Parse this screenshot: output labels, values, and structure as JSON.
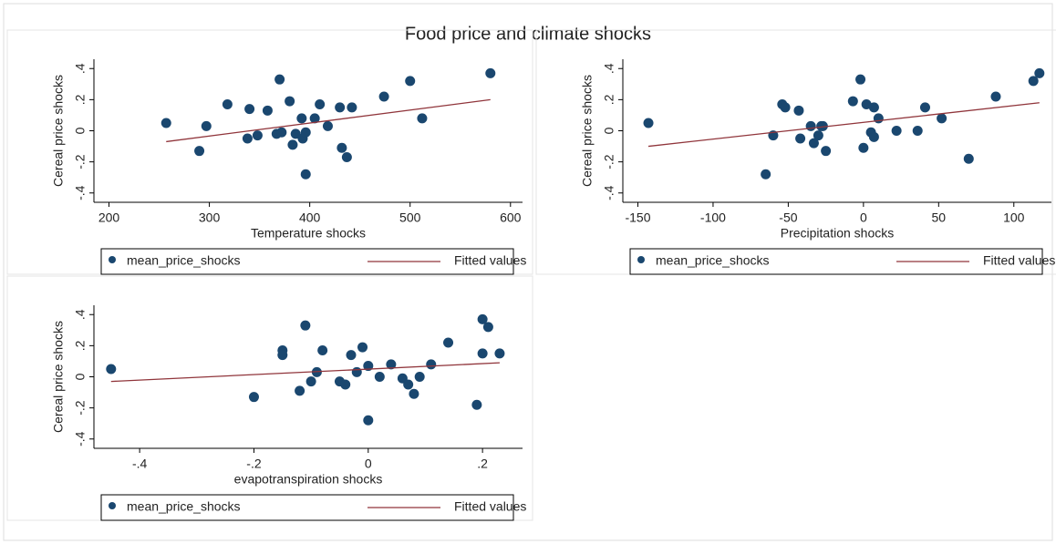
{
  "title": "Food price and climate shocks",
  "chart_data": [
    {
      "type": "scatter",
      "ylabel": "Cereal price shocks",
      "xlabel": "Temperature shocks",
      "xlim": [
        185,
        612
      ],
      "xticks": [
        200,
        300,
        400,
        500,
        600
      ],
      "ylim": [
        -0.46,
        0.46
      ],
      "yticks": [
        {
          "value": -0.4,
          "label": "-.4"
        },
        {
          "value": -0.2,
          "label": "-.2"
        },
        0,
        {
          "value": 0.2,
          "label": ".2"
        },
        {
          "value": 0.4,
          "label": ".4"
        }
      ],
      "series": [
        {
          "name": "mean_price_shocks",
          "type": "scatter",
          "color": "#1a476f",
          "x": [
            257,
            290,
            297,
            318,
            338,
            340,
            348,
            358,
            367,
            370,
            372,
            380,
            383,
            386,
            392,
            393,
            396,
            396,
            405,
            410,
            418,
            430,
            432,
            437,
            442,
            474,
            500,
            512,
            580
          ],
          "values": [
            0.05,
            -0.13,
            0.03,
            0.17,
            -0.05,
            0.14,
            -0.03,
            0.13,
            -0.02,
            0.33,
            -0.01,
            0.19,
            -0.09,
            -0.02,
            0.08,
            -0.05,
            -0.28,
            -0.01,
            0.08,
            0.17,
            0.03,
            0.15,
            -0.11,
            -0.17,
            0.15,
            0.22,
            0.32,
            0.08,
            0.37
          ]
        },
        {
          "name": "Fitted values",
          "type": "line",
          "color": "#90353b",
          "x": [
            257,
            580
          ],
          "values": [
            -0.07,
            0.2
          ]
        }
      ]
    },
    {
      "type": "scatter",
      "ylabel": "Cereal price shocks",
      "xlabel": "Precipitation shocks",
      "xlim": [
        -160,
        125
      ],
      "xticks": [
        -150,
        -100,
        -50,
        0,
        50,
        100
      ],
      "ylim": [
        -0.46,
        0.46
      ],
      "yticks": [
        {
          "value": -0.4,
          "label": "-.4"
        },
        {
          "value": -0.2,
          "label": "-.2"
        },
        0,
        {
          "value": 0.2,
          "label": ".2"
        },
        {
          "value": 0.4,
          "label": ".4"
        }
      ],
      "series": [
        {
          "name": "mean_price_shocks",
          "type": "scatter",
          "color": "#1a476f",
          "x": [
            -143,
            -65,
            -60,
            -54,
            -52,
            -43,
            -42,
            -35,
            -33,
            -30,
            -28,
            -25,
            -27,
            -7,
            -2,
            0,
            2,
            5,
            7,
            7,
            10,
            22,
            36,
            41,
            52,
            70,
            88,
            113,
            117
          ],
          "values": [
            0.05,
            -0.28,
            -0.03,
            0.17,
            0.15,
            0.13,
            -0.05,
            0.03,
            -0.08,
            -0.03,
            0.03,
            -0.13,
            0.03,
            0.19,
            0.33,
            -0.11,
            0.17,
            -0.01,
            0.15,
            -0.04,
            0.08,
            0,
            0,
            0.15,
            0.08,
            -0.18,
            0.22,
            0.32,
            0.37
          ]
        },
        {
          "name": "Fitted values",
          "type": "line",
          "color": "#90353b",
          "x": [
            -143,
            117
          ],
          "values": [
            -0.1,
            0.18
          ]
        }
      ]
    },
    {
      "type": "scatter",
      "ylabel": "Cereal price shocks",
      "xlabel": "evapotranspiration shocks",
      "xlim": [
        -0.48,
        0.27
      ],
      "xticks": [
        {
          "value": -0.4,
          "label": "-.4"
        },
        {
          "value": -0.2,
          "label": "-.2"
        },
        0,
        {
          "value": 0.2,
          "label": ".2"
        }
      ],
      "ylim": [
        -0.46,
        0.46
      ],
      "yticks": [
        {
          "value": -0.4,
          "label": "-.4"
        },
        {
          "value": -0.2,
          "label": "-.2"
        },
        0,
        {
          "value": 0.2,
          "label": ".2"
        },
        {
          "value": 0.4,
          "label": ".4"
        }
      ],
      "series": [
        {
          "name": "mean_price_shocks",
          "type": "scatter",
          "color": "#1a476f",
          "x": [
            -0.45,
            -0.2,
            -0.15,
            -0.15,
            -0.12,
            -0.11,
            -0.1,
            -0.09,
            -0.08,
            -0.05,
            -0.04,
            -0.03,
            -0.02,
            -0.01,
            0,
            0,
            0.02,
            0.04,
            0.06,
            0.07,
            0.08,
            0.09,
            0.11,
            0.14,
            0.19,
            0.2,
            0.2,
            0.21,
            0.23
          ],
          "values": [
            0.05,
            -0.13,
            0.17,
            0.14,
            -0.09,
            0.33,
            -0.03,
            0.03,
            0.17,
            -0.03,
            -0.05,
            0.14,
            0.03,
            0.19,
            -0.28,
            0.07,
            0,
            0.08,
            -0.01,
            -0.05,
            -0.11,
            0,
            0.08,
            0.22,
            -0.18,
            0.37,
            0.15,
            0.32,
            0.15
          ]
        },
        {
          "name": "Fitted values",
          "type": "line",
          "color": "#90353b",
          "x": [
            -0.45,
            0.23
          ],
          "values": [
            -0.03,
            0.09
          ]
        }
      ]
    }
  ]
}
